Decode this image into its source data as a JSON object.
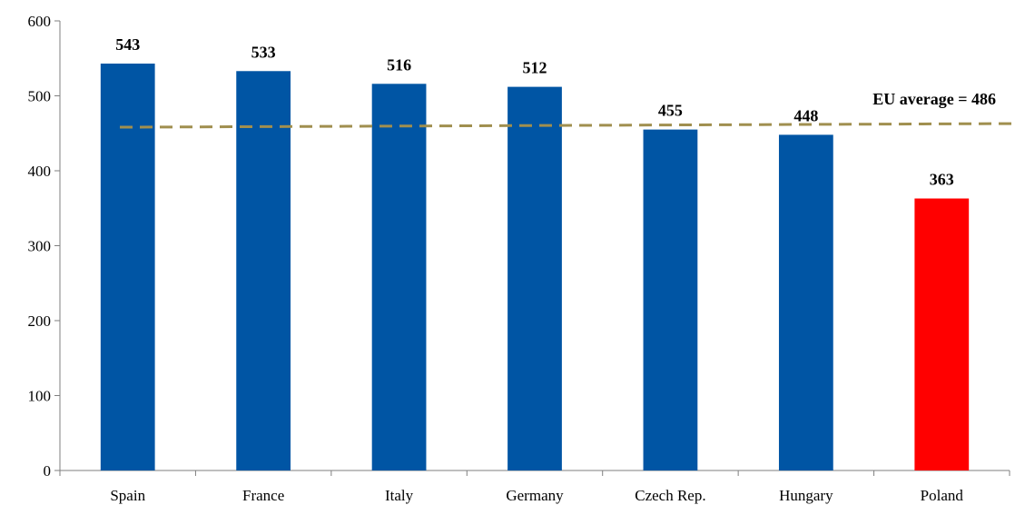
{
  "chart_data": {
    "type": "bar",
    "categories": [
      "Spain",
      "France",
      "Italy",
      "Germany",
      "Czech Rep.",
      "Hungary",
      "Poland"
    ],
    "values": [
      543,
      533,
      516,
      512,
      455,
      448,
      363
    ],
    "data_labels": [
      "543",
      "533",
      "516",
      "512",
      "455",
      "448",
      "363"
    ],
    "bar_colors": [
      "#0055A4",
      "#0055A4",
      "#0055A4",
      "#0055A4",
      "#0055A4",
      "#0055A4",
      "#FF0000"
    ],
    "ylim": [
      0,
      600
    ],
    "yticks": [
      0,
      100,
      200,
      300,
      400,
      500,
      600
    ],
    "ytick_labels": [
      "0",
      "100",
      "200",
      "300",
      "400",
      "500",
      "600"
    ],
    "title": "",
    "xlabel": "",
    "ylabel": "",
    "grid": false,
    "reference_line": {
      "label": "EU average = 486",
      "value": 486,
      "style": "dashed",
      "color": "#A08F4F"
    }
  }
}
